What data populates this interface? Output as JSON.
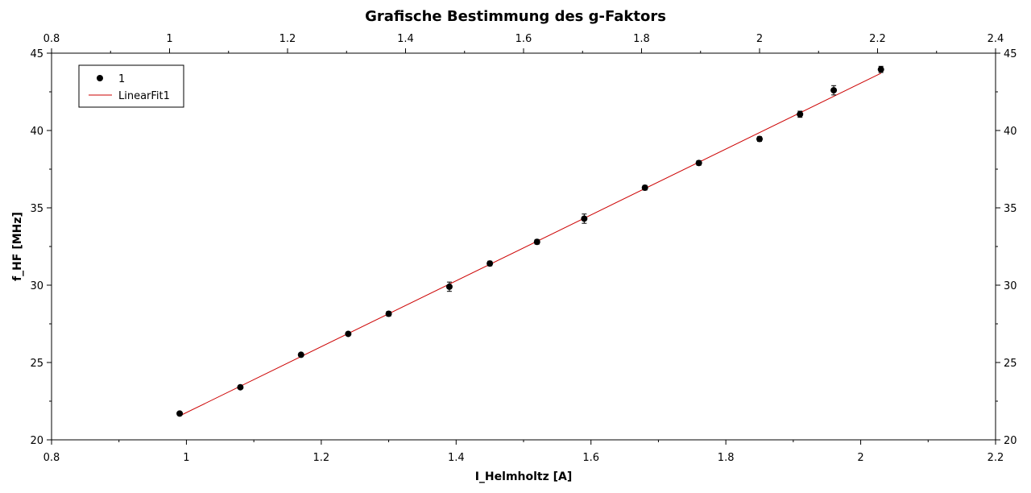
{
  "chart_data": {
    "type": "scatter",
    "title": "Grafische Bestimmung des g-Faktors",
    "xlabel": "I_Helmholtz [A]",
    "ylabel": "f_HF [MHz]",
    "xlim": [
      0.8,
      2.2
    ],
    "ylim": [
      20,
      45
    ],
    "top_xlim": [
      0.8,
      2.4
    ],
    "x_ticks": [
      "0.8",
      "1",
      "1.2",
      "1.4",
      "1.6",
      "1.8",
      "2",
      "2.2"
    ],
    "x_tick_values": [
      0.8,
      1.0,
      1.2,
      1.4,
      1.6,
      1.8,
      2.0,
      2.2
    ],
    "top_x_ticks": [
      "0.8",
      "1",
      "1.2",
      "1.4",
      "1.6",
      "1.8",
      "2",
      "2.2",
      "2.4"
    ],
    "top_x_tick_values": [
      0.8,
      1.0,
      1.2,
      1.4,
      1.6,
      1.8,
      2.0,
      2.2,
      2.4
    ],
    "y_ticks": [
      "20",
      "25",
      "30",
      "35",
      "40",
      "45"
    ],
    "y_tick_values": [
      20,
      25,
      30,
      35,
      40,
      45
    ],
    "grid": false,
    "legend_position": "top-left",
    "series": [
      {
        "name": "1",
        "type": "scatter",
        "color": "#000000",
        "x": [
          0.99,
          1.08,
          1.17,
          1.24,
          1.3,
          1.39,
          1.45,
          1.52,
          1.59,
          1.68,
          1.76,
          1.85,
          1.91,
          1.96,
          2.03
        ],
        "y": [
          21.7,
          23.4,
          25.5,
          26.85,
          28.15,
          29.9,
          31.4,
          32.8,
          34.3,
          36.3,
          37.9,
          39.45,
          41.05,
          42.6,
          43.95
        ],
        "yerr": [
          0.1,
          0.1,
          0.1,
          0.1,
          0.15,
          0.3,
          0.15,
          0.15,
          0.3,
          0.15,
          0.15,
          0.15,
          0.2,
          0.3,
          0.2
        ]
      },
      {
        "name": "LinearFit1",
        "type": "line",
        "color": "#cc0000",
        "x": [
          0.99,
          2.03
        ],
        "y": [
          21.55,
          43.7
        ]
      }
    ]
  }
}
